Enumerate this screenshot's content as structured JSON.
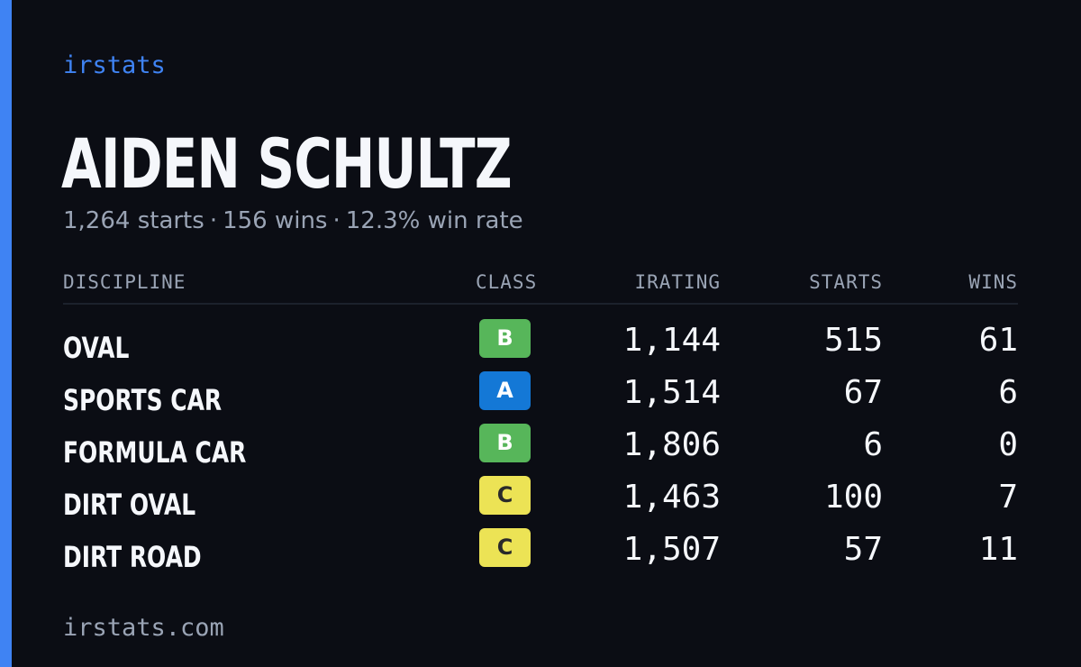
{
  "colors": {
    "accent": "#3f83f3",
    "background": "#0b0d14",
    "text_primary": "#f5f7fb",
    "text_muted": "#9aa4b5",
    "class_a": "#1478d6",
    "class_b": "#57b65a",
    "class_c": "#ece355"
  },
  "brand": "irstats",
  "player": {
    "name": "AIDEN SCHULTZ",
    "starts": "1,264 starts",
    "wins": "156 wins",
    "win_rate": "12.3% win rate",
    "separator": "·"
  },
  "table": {
    "headers": {
      "discipline": "DISCIPLINE",
      "class": "CLASS",
      "irating": "IRATING",
      "starts": "STARTS",
      "wins": "WINS"
    },
    "rows": [
      {
        "discipline": "OVAL",
        "class": "B",
        "irating": "1,144",
        "starts": "515",
        "wins": "61"
      },
      {
        "discipline": "SPORTS CAR",
        "class": "A",
        "irating": "1,514",
        "starts": "67",
        "wins": "6"
      },
      {
        "discipline": "FORMULA CAR",
        "class": "B",
        "irating": "1,806",
        "starts": "6",
        "wins": "0"
      },
      {
        "discipline": "DIRT OVAL",
        "class": "C",
        "irating": "1,463",
        "starts": "100",
        "wins": "7"
      },
      {
        "discipline": "DIRT ROAD",
        "class": "C",
        "irating": "1,507",
        "starts": "57",
        "wins": "11"
      }
    ]
  },
  "footer": "irstats.com"
}
